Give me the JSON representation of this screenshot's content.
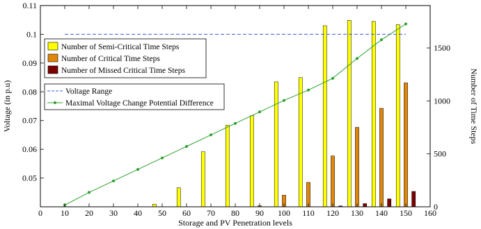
{
  "chart_data": {
    "type": "bar",
    "title": "",
    "xlabel": "Storage and PV Penetration levels",
    "ylabel_left": "Voltage (in p.u)",
    "ylabel_right": "Number of Time Steps",
    "xlim": [
      0,
      160
    ],
    "xticks": [
      "0",
      "10",
      "20",
      "30",
      "40",
      "50",
      "60",
      "70",
      "80",
      "90",
      "100",
      "110",
      "120",
      "130",
      "140",
      "150",
      "160"
    ],
    "ylim_left": [
      0.04,
      0.11
    ],
    "yticks_left": [
      "0.05",
      "0.06",
      "0.07",
      "0.08",
      "0.09",
      "0.1",
      "0.11"
    ],
    "ylim_right": [
      0,
      1900
    ],
    "yticks_right": [
      "0",
      "500",
      "1000",
      "1500"
    ],
    "grid": false,
    "legend_bars_position": "upper-left",
    "legend_lines_position": "middle-left",
    "colors": {
      "semi_critical": "#ffff00",
      "critical": "#e0870b",
      "missed": "#7a0000",
      "voltage_range": "#3b5bdb",
      "max_voltage_change": "#2ca02c"
    },
    "series": [
      {
        "name": "Number of Semi-Critical Time Steps",
        "kind": "bar",
        "axis": "right",
        "x": [
          10,
          20,
          30,
          40,
          50,
          60,
          70,
          80,
          90,
          100,
          110,
          120,
          130,
          140,
          150
        ],
        "values": [
          0,
          0,
          0,
          0,
          25,
          180,
          520,
          770,
          860,
          1180,
          1220,
          1710,
          1760,
          1750,
          1720
        ]
      },
      {
        "name": "Number of Critical Time Steps",
        "kind": "bar",
        "axis": "right",
        "x": [
          10,
          20,
          30,
          40,
          50,
          60,
          70,
          80,
          90,
          100,
          110,
          120,
          130,
          140,
          150
        ],
        "values": [
          0,
          0,
          0,
          0,
          0,
          0,
          0,
          0,
          10,
          110,
          230,
          480,
          750,
          930,
          1170
        ]
      },
      {
        "name": "Number of Missed Critical Time Steps",
        "kind": "bar",
        "axis": "right",
        "x": [
          10,
          20,
          30,
          40,
          50,
          60,
          70,
          80,
          90,
          100,
          110,
          120,
          130,
          140,
          150
        ],
        "values": [
          0,
          0,
          0,
          0,
          0,
          0,
          0,
          0,
          0,
          0,
          0,
          8,
          30,
          75,
          145
        ]
      },
      {
        "name": "Voltage Range",
        "kind": "line",
        "axis": "left",
        "x": [
          10,
          150
        ],
        "values": [
          0.1,
          0.1
        ]
      },
      {
        "name": "Maximal Voltage Change Potential Difference",
        "kind": "line",
        "axis": "left",
        "x": [
          10,
          20,
          30,
          40,
          50,
          60,
          70,
          80,
          90,
          100,
          110,
          120,
          130,
          140,
          150
        ],
        "values": [
          0.0406,
          0.045,
          0.049,
          0.053,
          0.057,
          0.061,
          0.065,
          0.069,
          0.073,
          0.077,
          0.0806,
          0.0847,
          0.0916,
          0.0981,
          0.1036
        ]
      }
    ]
  }
}
